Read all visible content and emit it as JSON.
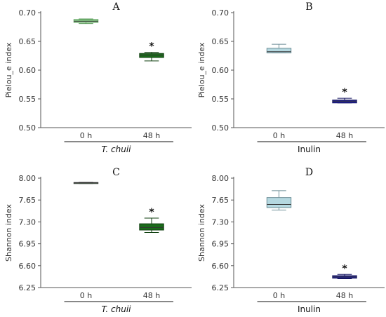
{
  "chart_data": [
    {
      "type": "box",
      "panel_letter": "A",
      "ylabel": "Pielou_e index",
      "ylim": [
        0.5,
        0.7
      ],
      "yticks": [
        "0.50",
        "0.55",
        "0.60",
        "0.65",
        "0.70"
      ],
      "categories": [
        "0 h",
        "48 h"
      ],
      "group_label": "T. chuii",
      "group_italic": true,
      "boxes": [
        {
          "min": 0.681,
          "q1": 0.683,
          "median": 0.685,
          "q3": 0.688,
          "max": 0.689,
          "fill": "#90d890",
          "stroke": "#5e9e5e",
          "sig": ""
        },
        {
          "min": 0.616,
          "q1": 0.622,
          "median": 0.626,
          "q3": 0.629,
          "max": 0.631,
          "fill": "#1a6b1a",
          "stroke": "#0f3f0f",
          "sig": "*"
        }
      ]
    },
    {
      "type": "box",
      "panel_letter": "B",
      "ylabel": "Pielou_e index",
      "ylim": [
        0.5,
        0.7
      ],
      "yticks": [
        "0.50",
        "0.55",
        "0.60",
        "0.65",
        "0.70"
      ],
      "categories": [
        "0 h",
        "48 h"
      ],
      "group_label": "Inulin",
      "group_italic": false,
      "boxes": [
        {
          "min": 0.63,
          "q1": 0.63,
          "median": 0.632,
          "q3": 0.638,
          "max": 0.645,
          "fill": "#b5d8e0",
          "stroke": "#6c8e96",
          "sig": ""
        },
        {
          "min": 0.543,
          "q1": 0.543,
          "median": 0.546,
          "q3": 0.548,
          "max": 0.551,
          "fill": "#2323a0",
          "stroke": "#141460",
          "sig": "*"
        }
      ]
    },
    {
      "type": "box",
      "panel_letter": "C",
      "ylabel": "Shannon index",
      "ylim": [
        6.25,
        8.0
      ],
      "yticks": [
        "6.25",
        "6.60",
        "6.95",
        "7.30",
        "7.65",
        "8.00"
      ],
      "categories": [
        "0 h",
        "48 h"
      ],
      "group_label": "T. chuii",
      "group_italic": true,
      "boxes": [
        {
          "min": 7.915,
          "q1": 7.92,
          "median": 7.925,
          "q3": 7.93,
          "max": 7.932,
          "fill": "#90d890",
          "stroke": "#333333",
          "sig": ""
        },
        {
          "min": 7.13,
          "q1": 7.17,
          "median": 7.21,
          "q3": 7.27,
          "max": 7.36,
          "fill": "#1a6b1a",
          "stroke": "#0f3f0f",
          "sig": "*"
        }
      ]
    },
    {
      "type": "box",
      "panel_letter": "D",
      "ylabel": "Shannon index",
      "ylim": [
        6.25,
        8.0
      ],
      "yticks": [
        "6.25",
        "6.60",
        "6.95",
        "7.30",
        "7.65",
        "8.00"
      ],
      "categories": [
        "0 h",
        "48 h"
      ],
      "group_label": "Inulin",
      "group_italic": false,
      "boxes": [
        {
          "min": 7.49,
          "q1": 7.53,
          "median": 7.58,
          "q3": 7.69,
          "max": 7.8,
          "fill": "#b5d8e0",
          "stroke": "#6c8e96",
          "sig": ""
        },
        {
          "min": 6.39,
          "q1": 6.4,
          "median": 6.42,
          "q3": 6.44,
          "max": 6.46,
          "fill": "#2323a0",
          "stroke": "#141460",
          "sig": "*"
        }
      ]
    }
  ]
}
